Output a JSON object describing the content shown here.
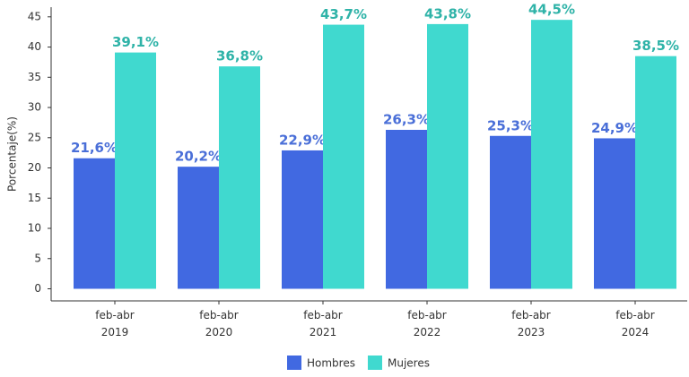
{
  "chart_data": {
    "type": "bar",
    "y_label": "Porcentaje(%)",
    "categories": [
      "feb-abr 2019",
      "feb-abr 2020",
      "feb-abr 2021",
      "feb-abr 2022",
      "feb-abr 2023",
      "feb-abr 2024"
    ],
    "series": [
      {
        "name": "Hombres",
        "color": "#4169e1",
        "label_color": "#4a6fd8",
        "values": [
          21.6,
          20.2,
          22.9,
          26.3,
          25.3,
          24.9
        ],
        "value_labels": [
          "21,6%",
          "20,2%",
          "22,9%",
          "26,3%",
          "25,3%",
          "24,9%"
        ]
      },
      {
        "name": "Mujeres",
        "color": "#40d9cf",
        "label_color": "#2fb3a8",
        "values": [
          39.1,
          36.8,
          43.7,
          43.8,
          44.5,
          38.5
        ],
        "value_labels": [
          "39,1%",
          "36,8%",
          "43,7%",
          "43,8%",
          "44,5%",
          "38,5%"
        ]
      }
    ],
    "ylim": [
      -2,
      46.6
    ],
    "yticks": [
      0,
      5,
      10,
      15,
      20,
      25,
      30,
      35,
      40,
      45
    ],
    "legend": "bottom"
  }
}
